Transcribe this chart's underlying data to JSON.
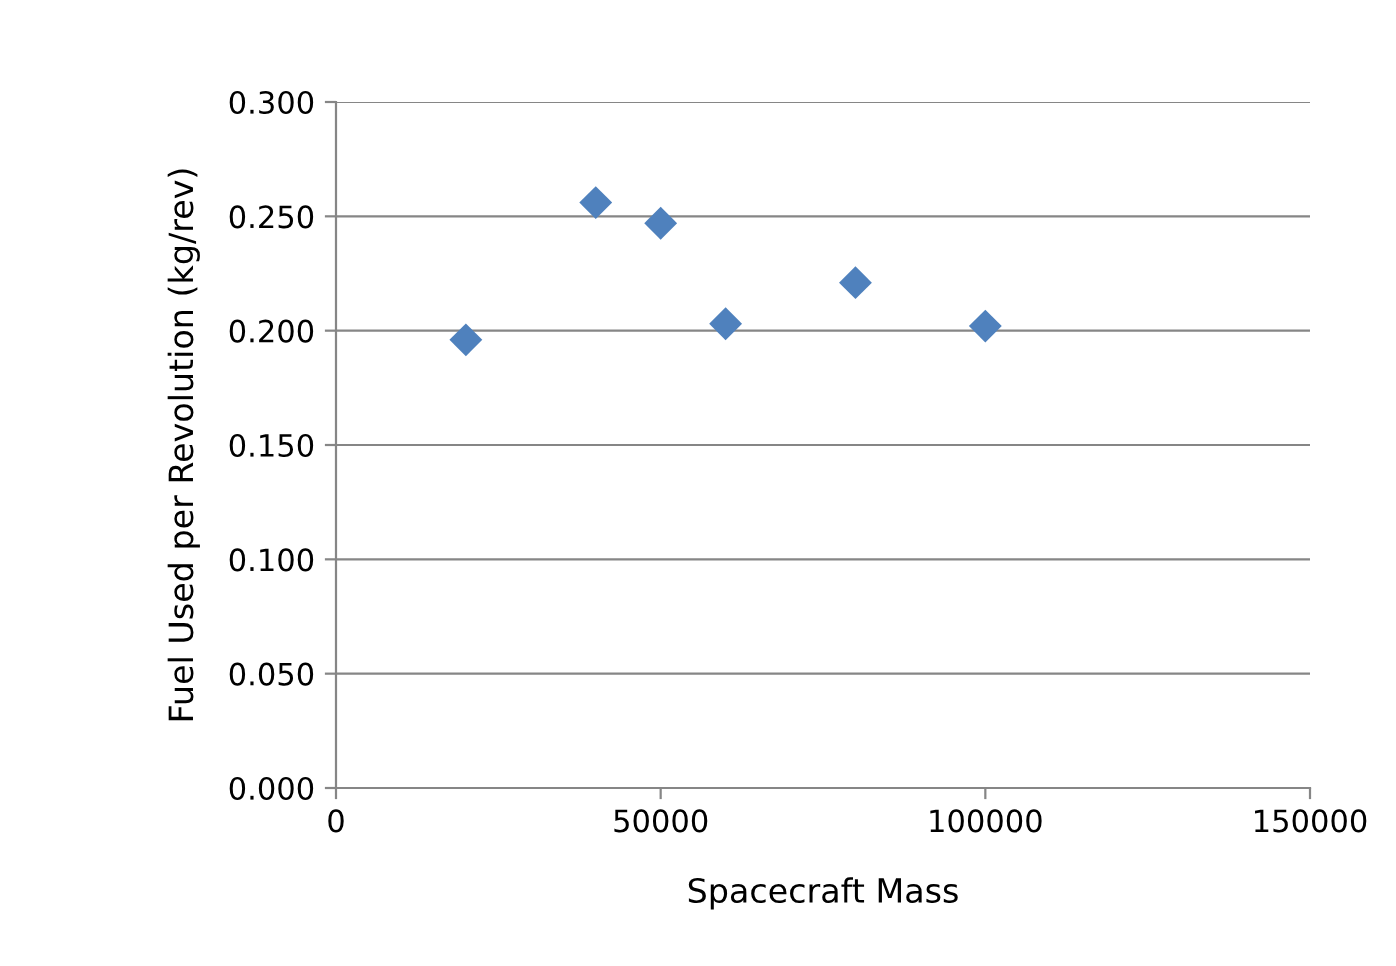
{
  "chart_data": {
    "type": "scatter",
    "xlabel": "Spacecraft Mass",
    "ylabel": "Fuel Used per Revolution (kg/rev)",
    "x": [
      20000,
      40000,
      50000,
      60000,
      80000,
      100000
    ],
    "values": [
      0.196,
      0.256,
      0.247,
      0.203,
      0.221,
      0.202
    ],
    "color": "#4f81bd",
    "marker": "diamond",
    "xlim": [
      0,
      150000
    ],
    "xticks": [
      0,
      50000,
      100000,
      150000
    ],
    "ylim": [
      0,
      0.3
    ],
    "yticks": [
      {
        "value": 0,
        "label": "0.000"
      },
      {
        "value": 0.05,
        "label": "0.050"
      },
      {
        "value": 0.1,
        "label": "0.100"
      },
      {
        "value": 0.15,
        "label": "0.150"
      },
      {
        "value": 0.2,
        "label": "0.200"
      },
      {
        "value": 0.25,
        "label": "0.250"
      },
      {
        "value": 0.3,
        "label": "0.300"
      }
    ],
    "grid": "y",
    "legend": false
  }
}
